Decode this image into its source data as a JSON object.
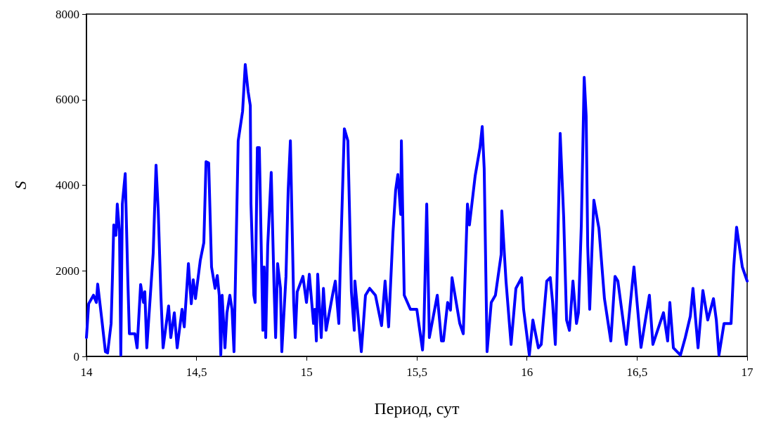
{
  "chart_data": {
    "type": "line",
    "xlabel": "Период, сут",
    "ylabel": "S",
    "xlim": [
      14,
      17
    ],
    "xticks": [
      14,
      {
        "value": 14.5,
        "label": "14,5"
      },
      15,
      {
        "value": 15.5,
        "label": "15,5"
      },
      16,
      {
        "value": 16.5,
        "label": "16,5"
      },
      17
    ],
    "ylim": [
      0,
      8000
    ],
    "yticks": [
      0,
      2000,
      4000,
      6000,
      8000
    ],
    "grid": false,
    "marker": "none",
    "line_style": "solid",
    "series": [
      {
        "color": "#0000ff",
        "x": [
          14.0,
          14.01,
          14.032,
          14.045,
          14.051,
          14.07,
          14.086,
          14.096,
          14.112,
          14.118,
          14.124,
          14.134,
          14.14,
          14.15,
          14.156,
          14.163,
          14.176,
          14.188,
          14.195,
          14.22,
          14.23,
          14.246,
          14.259,
          14.265,
          14.274,
          14.303,
          14.316,
          14.326,
          14.338,
          14.348,
          14.373,
          14.383,
          14.399,
          14.412,
          14.434,
          14.444,
          14.463,
          14.476,
          14.485,
          14.495,
          14.517,
          14.533,
          14.543,
          14.555,
          14.568,
          14.584,
          14.594,
          14.603,
          14.61,
          14.616,
          14.629,
          14.638,
          14.651,
          14.661,
          14.67,
          14.689,
          14.709,
          14.721,
          14.734,
          14.744,
          14.747,
          14.76,
          14.766,
          14.776,
          14.785,
          14.801,
          14.807,
          14.814,
          14.823,
          14.839,
          14.852,
          14.859,
          14.868,
          14.881,
          14.887,
          14.906,
          14.916,
          14.926,
          14.941,
          14.948,
          14.957,
          14.983,
          14.999,
          15.012,
          15.031,
          15.037,
          15.044,
          15.05,
          15.066,
          15.076,
          15.088,
          15.12,
          15.13,
          15.146,
          15.152,
          15.171,
          15.187,
          15.203,
          15.216,
          15.219,
          15.248,
          15.267,
          15.286,
          15.312,
          15.34,
          15.356,
          15.372,
          15.392,
          15.404,
          15.414,
          15.427,
          15.43,
          15.443,
          15.471,
          15.5,
          15.526,
          15.532,
          15.545,
          15.557,
          15.593,
          15.612,
          15.621,
          15.64,
          15.653,
          15.66,
          15.695,
          15.711,
          15.73,
          15.739,
          15.765,
          15.787,
          15.797,
          15.806,
          15.819,
          15.838,
          15.857,
          15.883,
          15.886,
          15.905,
          15.928,
          15.95,
          15.976,
          15.985,
          16.011,
          16.027,
          16.052,
          16.065,
          16.09,
          16.106,
          16.116,
          16.129,
          16.135,
          16.151,
          16.167,
          16.18,
          16.193,
          16.209,
          16.225,
          16.234,
          16.247,
          16.26,
          16.269,
          16.276,
          16.285,
          16.304,
          16.327,
          16.352,
          16.381,
          16.4,
          16.413,
          16.451,
          16.486,
          16.518,
          16.556,
          16.572,
          16.62,
          16.639,
          16.649,
          16.665,
          16.697,
          16.719,
          16.742,
          16.754,
          16.777,
          16.799,
          16.821,
          16.847,
          16.86,
          16.872,
          16.895,
          16.927,
          16.939,
          16.952,
          16.978,
          17.0
        ],
        "values": [
          440,
          1230,
          1430,
          1260,
          1690,
          850,
          110,
          80,
          770,
          1840,
          3070,
          2830,
          3560,
          2910,
          30,
          3560,
          4270,
          1760,
          530,
          530,
          200,
          1680,
          1260,
          1510,
          200,
          2410,
          4470,
          3400,
          1430,
          200,
          1180,
          440,
          1020,
          200,
          1100,
          690,
          2170,
          1230,
          1790,
          1350,
          2250,
          2660,
          4550,
          4520,
          2090,
          1590,
          1890,
          1430,
          30,
          1430,
          200,
          1020,
          1430,
          1100,
          110,
          5040,
          5730,
          6820,
          6190,
          5860,
          3560,
          1430,
          1260,
          4880,
          4880,
          610,
          2090,
          440,
          2580,
          4300,
          1590,
          440,
          2170,
          1590,
          110,
          1870,
          3890,
          5040,
          1260,
          440,
          1510,
          1870,
          1260,
          1920,
          770,
          1100,
          360,
          1920,
          440,
          1590,
          610,
          1510,
          1760,
          770,
          2000,
          5320,
          5040,
          1510,
          610,
          1760,
          110,
          1430,
          1590,
          1430,
          720,
          1760,
          690,
          2910,
          3890,
          4250,
          3320,
          5040,
          1430,
          1100,
          1100,
          150,
          640,
          3560,
          440,
          1430,
          360,
          360,
          1260,
          1080,
          1840,
          770,
          530,
          3560,
          3070,
          4220,
          4880,
          5370,
          4390,
          110,
          1260,
          1430,
          2380,
          3400,
          1760,
          280,
          1590,
          1840,
          1100,
          30,
          850,
          200,
          280,
          1760,
          1840,
          1300,
          280,
          1430,
          5210,
          3240,
          850,
          610,
          1760,
          770,
          1020,
          3070,
          6520,
          5620,
          2580,
          1100,
          3650,
          2990,
          1350,
          360,
          1870,
          1760,
          280,
          2090,
          210,
          1430,
          280,
          1020,
          360,
          1260,
          200,
          30,
          440,
          940,
          1590,
          200,
          1540,
          850,
          1350,
          850,
          30,
          770,
          770,
          2090,
          3020,
          2090,
          1760
        ]
      }
    ]
  }
}
